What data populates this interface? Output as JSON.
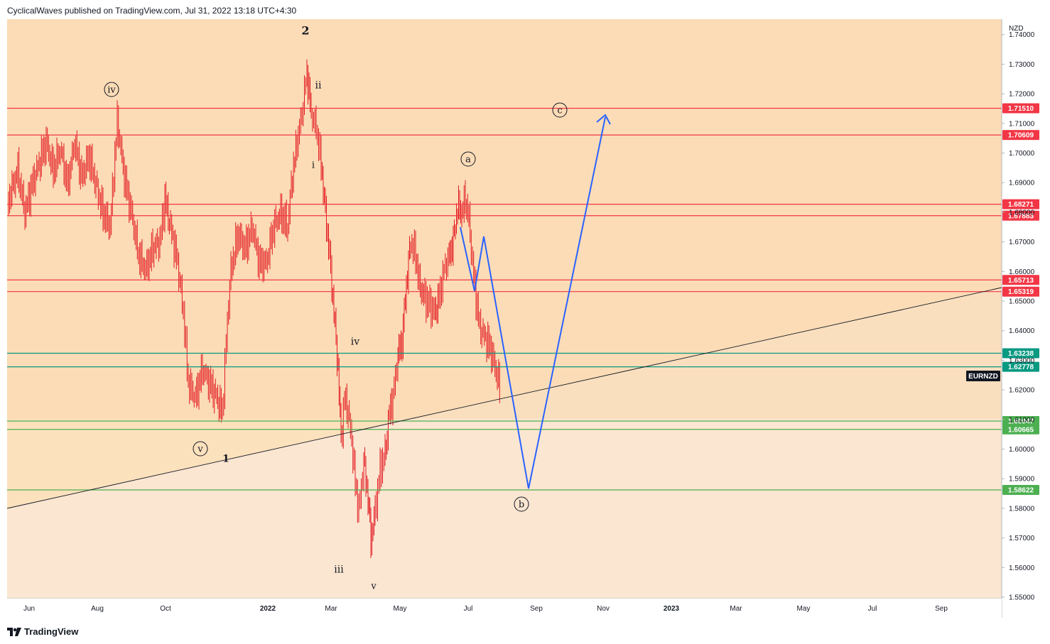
{
  "header": {
    "text": "CyclicalWaves published on TradingView.com, Jul 31, 2022 13:18 UTC+4:30"
  },
  "footer": {
    "brand": "TradingView",
    "logo_icon": "tradingview-logo-icon"
  },
  "chart_data": {
    "type": "candlestick",
    "symbol": "EURNZD",
    "currency": "NZD",
    "y_ticks": [
      "1.74000",
      "1.73000",
      "1.72000",
      "1.71000",
      "1.70000",
      "1.69000",
      "1.68000",
      "1.67000",
      "1.66000",
      "1.65000",
      "1.64000",
      "1.63000",
      "1.62000",
      "1.61000",
      "1.60000",
      "1.59000",
      "1.58000",
      "1.57000",
      "1.56000",
      "1.55000"
    ],
    "x_ticks": [
      "Jun",
      "Aug",
      "Oct",
      "2022",
      "Mar",
      "May",
      "Jul",
      "Sep",
      "Nov",
      "2023",
      "Mar",
      "May",
      "Jul",
      "Sep"
    ],
    "ylim": [
      1.55,
      1.74
    ],
    "horizontal_levels": [
      {
        "label": "1.71510",
        "value": 1.7151,
        "color": "#f23645"
      },
      {
        "label": "1.70609",
        "value": 1.70609,
        "color": "#f23645"
      },
      {
        "label": "1.68271",
        "value": 1.68271,
        "color": "#f23645"
      },
      {
        "label": "1.67883",
        "value": 1.67883,
        "color": "#f23645"
      },
      {
        "label": "1.65713",
        "value": 1.65713,
        "color": "#f23645"
      },
      {
        "label": "1.65319",
        "value": 1.65319,
        "color": "#f23645"
      },
      {
        "label": "1.63238",
        "value": 1.63238,
        "color": "#089981"
      },
      {
        "label": "1.62778",
        "value": 1.62778,
        "color": "#089981"
      },
      {
        "label": "1.60947",
        "value": 1.60947,
        "color": "#4caf50"
      },
      {
        "label": "1.60665",
        "value": 1.60665,
        "color": "#4caf50"
      },
      {
        "label": "1.58622",
        "value": 1.58622,
        "color": "#4caf50"
      }
    ],
    "wave_labels": [
      {
        "text": "2",
        "circled": false,
        "bold": true
      },
      {
        "text": "ii",
        "circled": false
      },
      {
        "text": "i",
        "circled": false
      },
      {
        "text": "iv",
        "circled": true
      },
      {
        "text": "v",
        "circled": true
      },
      {
        "text": "1",
        "circled": false,
        "bold": true
      },
      {
        "text": "iii",
        "circled": false
      },
      {
        "text": "iv",
        "circled": false
      },
      {
        "text": "v",
        "circled": false
      },
      {
        "text": "a",
        "circled": true
      },
      {
        "text": "b",
        "circled": true
      },
      {
        "text": "c",
        "circled": true
      }
    ],
    "colors": {
      "up_zone": "#fce1bd",
      "down_zone": "#fbe6d1",
      "projection": "#2962ff",
      "candles": "#e31b23",
      "trendline": "#131722"
    }
  }
}
